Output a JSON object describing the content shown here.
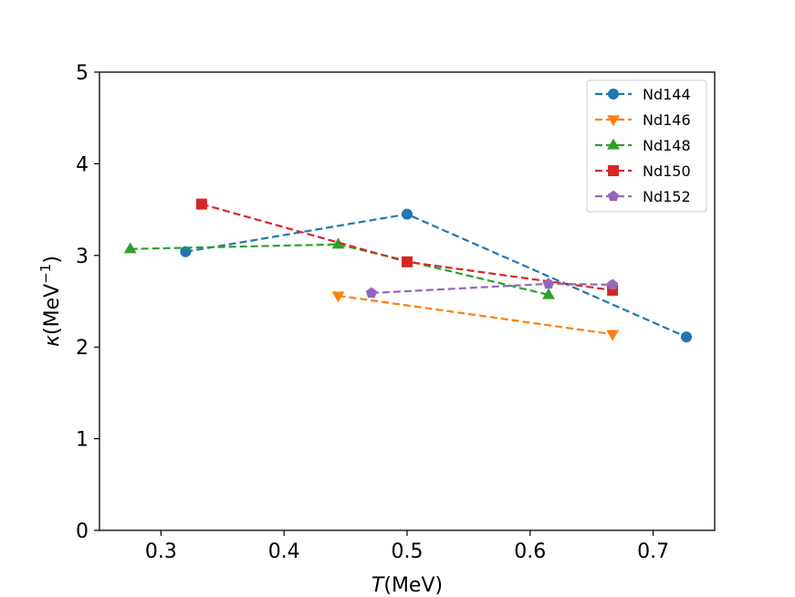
{
  "chart_data": {
    "type": "line",
    "xlabel_italic": "T",
    "xlabel_rest": "(MeV)",
    "ylabel_italic": "κ",
    "ylabel_rest": "(MeV",
    "ylabel_sup": "−1",
    "ylabel_close": ")",
    "xlim": [
      0.25,
      0.75
    ],
    "ylim": [
      0,
      5
    ],
    "xticks": [
      0.3,
      0.4,
      0.5,
      0.6,
      0.7
    ],
    "xtick_labels": [
      "0.3",
      "0.4",
      "0.5",
      "0.6",
      "0.7"
    ],
    "yticks": [
      0,
      1,
      2,
      3,
      4,
      5
    ],
    "ytick_labels": [
      "0",
      "1",
      "2",
      "3",
      "4",
      "5"
    ],
    "grid": false,
    "legend_position": "top-right",
    "series": [
      {
        "name": "Nd144",
        "color": "#1f77b4",
        "marker": "circle",
        "x": [
          0.32,
          0.5,
          0.727
        ],
        "y": [
          3.04,
          3.45,
          2.11
        ]
      },
      {
        "name": "Nd146",
        "color": "#ff7f0e",
        "marker": "triangle-down",
        "x": [
          0.444,
          0.667
        ],
        "y": [
          2.56,
          2.14
        ]
      },
      {
        "name": "Nd148",
        "color": "#2ca02c",
        "marker": "triangle-up",
        "x": [
          0.275,
          0.444,
          0.615
        ],
        "y": [
          3.07,
          3.12,
          2.57
        ]
      },
      {
        "name": "Nd150",
        "color": "#d62728",
        "marker": "square",
        "x": [
          0.333,
          0.5,
          0.667
        ],
        "y": [
          3.56,
          2.93,
          2.62
        ]
      },
      {
        "name": "Nd152",
        "color": "#9467bd",
        "marker": "pentagon",
        "x": [
          0.471,
          0.615,
          0.667
        ],
        "y": [
          2.59,
          2.69,
          2.68
        ]
      }
    ]
  }
}
